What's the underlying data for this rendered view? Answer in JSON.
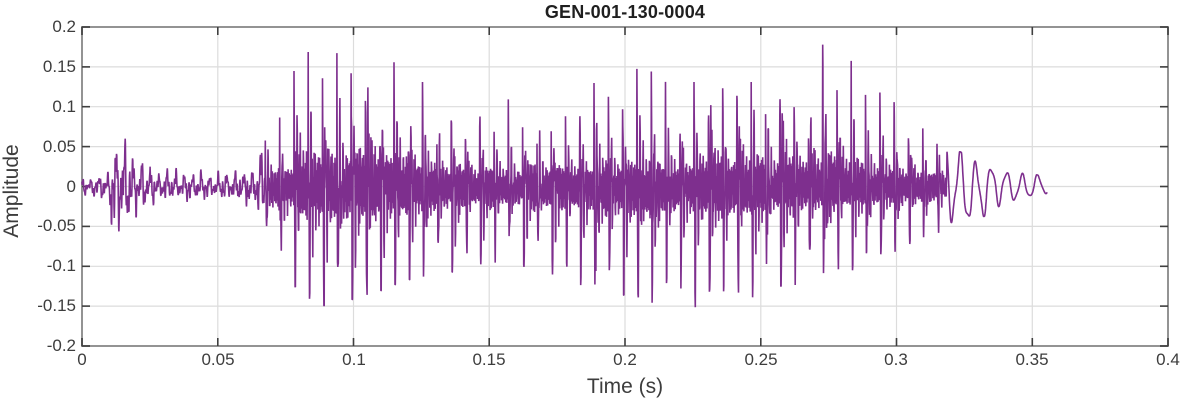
{
  "figure": {
    "title": "GEN-001-130-0004",
    "xlabel": "Time (s)",
    "ylabel": "Amplitude"
  },
  "colors": {
    "line": "#7E2F8E",
    "grid": "#dcdcdc",
    "box": "#939393",
    "tick": "#3f3f3f",
    "tick_label": "#3d3d3d",
    "title": "#1f1f1f",
    "background": "#ffffff"
  },
  "chart_data": {
    "type": "line",
    "title": "GEN-001-130-0004",
    "xlabel": "Time (s)",
    "ylabel": "Amplitude",
    "xlim": [
      0,
      0.4
    ],
    "ylim": [
      -0.2,
      0.2
    ],
    "xticks": [
      0,
      0.05,
      0.1,
      0.15,
      0.2,
      0.25,
      0.3,
      0.35,
      0.4
    ],
    "xtick_labels": [
      "0",
      "0.05",
      "0.1",
      "0.15",
      "0.2",
      "0.25",
      "0.3",
      "0.35",
      "0.4"
    ],
    "yticks": [
      -0.2,
      -0.15,
      -0.1,
      -0.05,
      0,
      0.05,
      0.1,
      0.15,
      0.2
    ],
    "ytick_labels": [
      "-0.2",
      "-0.15",
      "-0.1",
      "-0.05",
      "0",
      "0.05",
      "0.1",
      "0.15",
      "0.2"
    ],
    "grid": true,
    "legend": null,
    "line_color": "#7E2F8E",
    "signal": {
      "description": "speech waveform envelope read from plot; upper/lower are peak magnitudes",
      "t_start": 0.0,
      "t_end": 0.3555,
      "segments": [
        {
          "kind": "noise",
          "t0": 0.0,
          "t1": 0.0675
        },
        {
          "kind": "voiced",
          "t0": 0.0675,
          "t1": 0.3185,
          "f0": 190
        },
        {
          "kind": "ring",
          "t0": 0.3185,
          "t1": 0.3555,
          "f0": 175
        }
      ],
      "envelope": {
        "t": [
          0.0,
          0.006,
          0.01,
          0.0115,
          0.013,
          0.016,
          0.019,
          0.024,
          0.03,
          0.04,
          0.05,
          0.058,
          0.062,
          0.066,
          0.069,
          0.073,
          0.077,
          0.08,
          0.086,
          0.091,
          0.097,
          0.104,
          0.112,
          0.118,
          0.126,
          0.136,
          0.147,
          0.155,
          0.165,
          0.176,
          0.187,
          0.198,
          0.206,
          0.213,
          0.221,
          0.228,
          0.235,
          0.243,
          0.25,
          0.257,
          0.264,
          0.272,
          0.281,
          0.289,
          0.298,
          0.305,
          0.31,
          0.3145,
          0.318,
          0.3215,
          0.326,
          0.331,
          0.336,
          0.342,
          0.349,
          0.3555
        ],
        "upper": [
          0.012,
          0.016,
          0.02,
          0.035,
          0.065,
          0.058,
          0.042,
          0.03,
          0.024,
          0.022,
          0.024,
          0.026,
          0.032,
          0.05,
          0.062,
          0.1,
          0.13,
          0.17,
          0.175,
          0.16,
          0.165,
          0.185,
          0.16,
          0.142,
          0.126,
          0.115,
          0.1,
          0.105,
          0.11,
          0.115,
          0.125,
          0.132,
          0.146,
          0.15,
          0.152,
          0.165,
          0.18,
          0.175,
          0.162,
          0.165,
          0.17,
          0.172,
          0.18,
          0.132,
          0.11,
          0.082,
          0.07,
          0.084,
          0.052,
          0.046,
          0.04,
          0.03,
          0.022,
          0.018,
          0.018,
          0.01
        ],
        "lower": [
          0.012,
          0.016,
          0.022,
          0.085,
          0.055,
          0.062,
          0.046,
          0.03,
          0.024,
          0.022,
          0.024,
          0.026,
          0.032,
          0.052,
          0.066,
          0.1,
          0.115,
          0.13,
          0.147,
          0.145,
          0.14,
          0.135,
          0.125,
          0.116,
          0.11,
          0.105,
          0.095,
          0.092,
          0.1,
          0.11,
          0.125,
          0.13,
          0.145,
          0.14,
          0.142,
          0.15,
          0.142,
          0.14,
          0.132,
          0.122,
          0.12,
          0.105,
          0.112,
          0.1,
          0.082,
          0.072,
          0.062,
          0.058,
          0.055,
          0.05,
          0.046,
          0.04,
          0.03,
          0.018,
          0.014,
          0.01
        ]
      }
    }
  }
}
